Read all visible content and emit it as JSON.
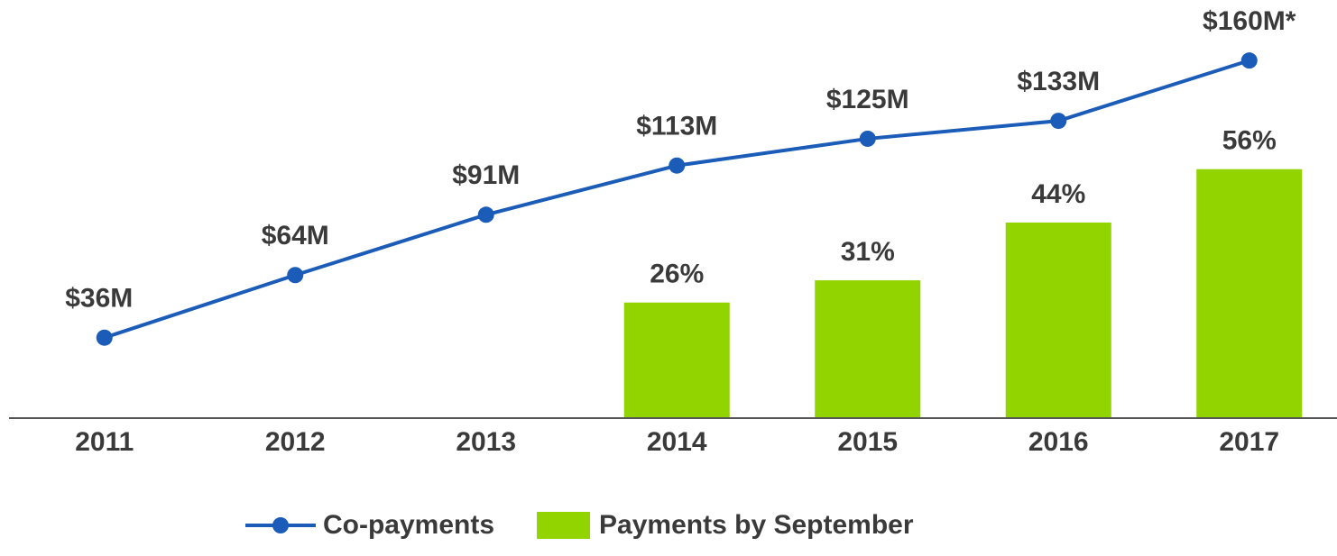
{
  "chart_data": {
    "type": "bar-line",
    "categories": [
      "2011",
      "2012",
      "2013",
      "2014",
      "2015",
      "2016",
      "2017"
    ],
    "series": [
      {
        "name": "Co-payments",
        "type": "line",
        "color": "#1a5cb8",
        "axis": "y",
        "values": [
          36,
          64,
          91,
          113,
          125,
          133,
          160
        ],
        "value_labels": [
          "$36M",
          "$64M",
          "$91M",
          "$113M",
          "$125M",
          "$133M",
          "$160M*"
        ]
      },
      {
        "name": "Payments by September",
        "type": "bar",
        "color": "#92d400",
        "axis": "y2",
        "values": [
          null,
          null,
          null,
          26,
          31,
          44,
          56
        ],
        "value_labels": [
          null,
          null,
          null,
          "26%",
          "31%",
          "44%",
          "56%"
        ]
      }
    ],
    "ylim": [
      0,
      179
    ],
    "y2lim": [
      0,
      90
    ],
    "legend": "bottom"
  }
}
